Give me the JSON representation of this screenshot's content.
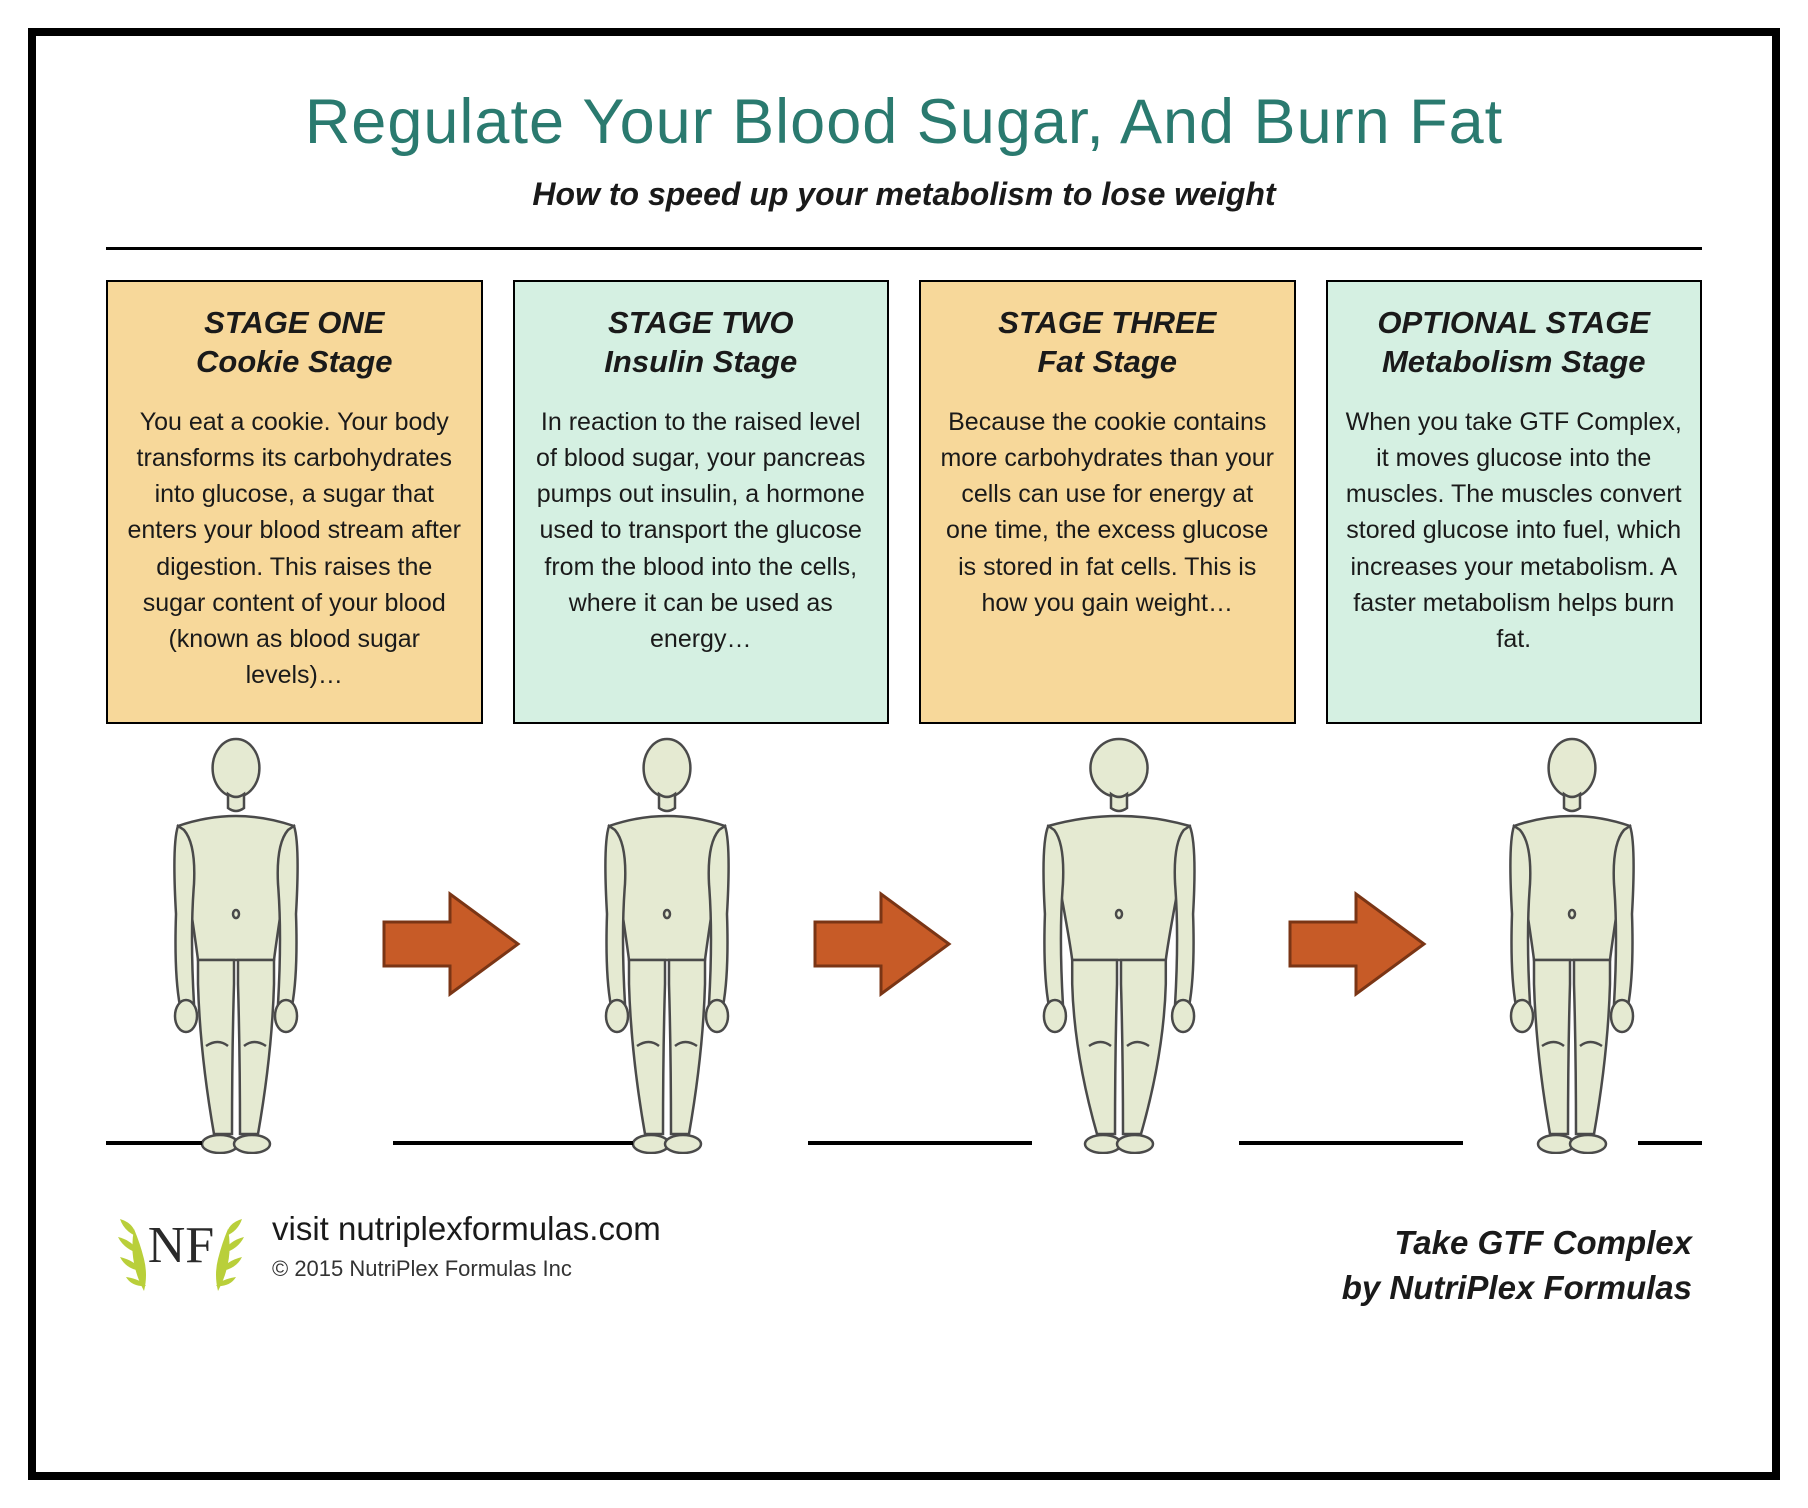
{
  "colors": {
    "title": "#2a7a6f",
    "text": "#1a1a1a",
    "border": "#000000",
    "orange_box": "#f7d89a",
    "mint_box": "#d5f0e2",
    "arrow_fill": "#c75b27",
    "arrow_stroke": "#7a3515",
    "body_fill": "#e5ead2",
    "body_stroke": "#4a4a4a",
    "laurel": "#b9cf3a",
    "background": "#ffffff"
  },
  "typography": {
    "title_fontsize": 63,
    "subtitle_fontsize": 32,
    "stage_title_fontsize": 31,
    "stage_body_fontsize": 25,
    "visit_fontsize": 33,
    "copyright_fontsize": 22,
    "footer_right_fontsize": 33
  },
  "header": {
    "title": "Regulate Your Blood Sugar, And Burn Fat",
    "subtitle": "How to speed up your metabolism to lose weight"
  },
  "stages": [
    {
      "color_class": "orange",
      "title_line1": "STAGE ONE",
      "title_line2": "Cookie Stage",
      "body": "You eat a cookie. Your body transforms its carbohydrates into glucose, a sugar that enters your blood stream after digestion. This raises the sugar content of your blood (known as blood sugar levels)…",
      "figure_width_scale": 1.0
    },
    {
      "color_class": "mint",
      "title_line1": "STAGE TWO",
      "title_line2": "Insulin Stage",
      "body": "In reaction to the raised level of blood sugar, your pancreas pumps out insulin, a hormone used to transport the glucose from the blood into the cells, where it can be used as energy…",
      "figure_width_scale": 1.0
    },
    {
      "color_class": "orange",
      "title_line1": "STAGE THREE",
      "title_line2": "Fat Stage",
      "body": "Because the cookie contains more carbohy­drates than your cells can use for energy at one time, the excess glucose is stored in fat cells. This is how you gain weight…",
      "figure_width_scale": 1.22
    },
    {
      "color_class": "mint",
      "title_line1": "OPTIONAL STAGE",
      "title_line2": "Metabolism Stage",
      "body": "When you take GTF Complex, it moves glucose into the muscles. The muscles convert stored glucose into fuel, which increases your metabolism. A faster metabolism helps burn fat.",
      "figure_width_scale": 1.0
    }
  ],
  "arrows": {
    "count": 3
  },
  "baseline_segments": [
    {
      "left_pct": 0,
      "width_pct": 6
    },
    {
      "left_pct": 18,
      "width_pct": 15
    },
    {
      "left_pct": 44,
      "width_pct": 14
    },
    {
      "left_pct": 71,
      "width_pct": 14
    },
    {
      "left_pct": 96,
      "width_pct": 4
    }
  ],
  "footer": {
    "logo_text": "NF",
    "visit": "visit nutriplexformulas.com",
    "copyright": "© 2015 NutriPlex Formulas Inc",
    "cta_line1": "Take GTF Complex",
    "cta_line2": "by NutriPlex Formulas"
  }
}
